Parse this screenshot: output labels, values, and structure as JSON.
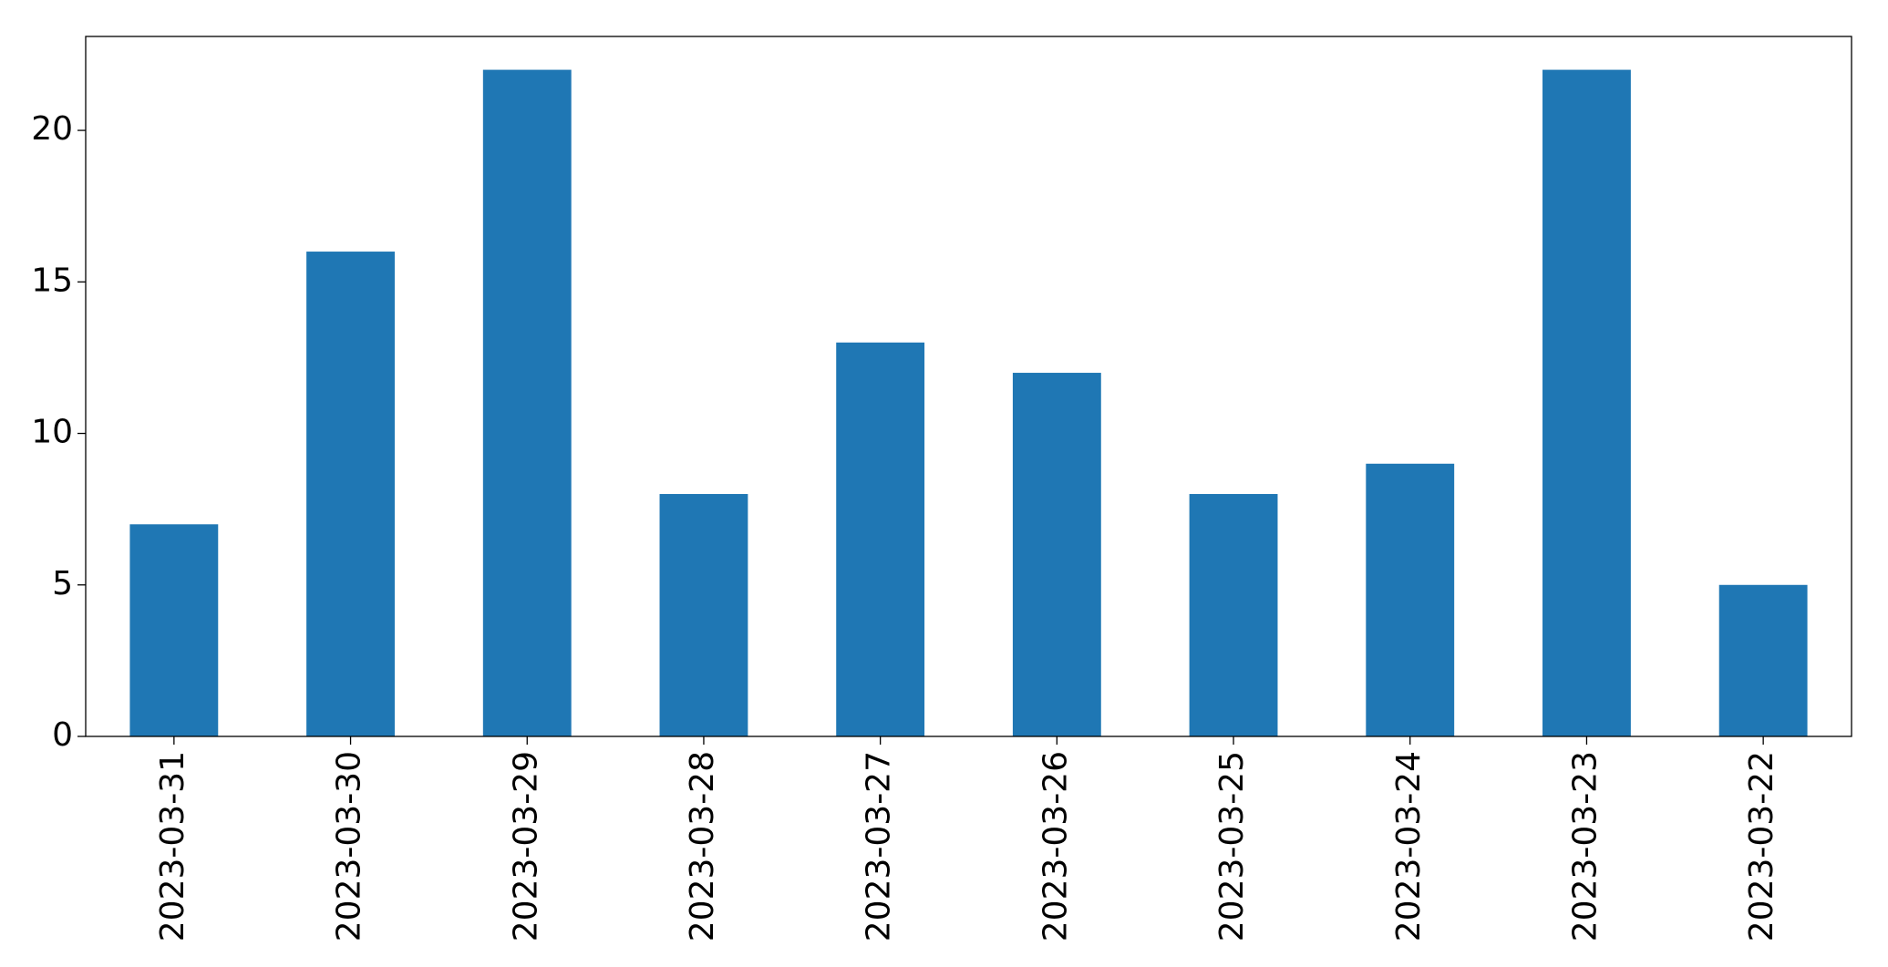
{
  "chart_data": {
    "type": "bar",
    "categories": [
      "2023-03-31",
      "2023-03-30",
      "2023-03-29",
      "2023-03-28",
      "2023-03-27",
      "2023-03-26",
      "2023-03-25",
      "2023-03-24",
      "2023-03-23",
      "2023-03-22"
    ],
    "values": [
      7,
      16,
      22,
      8,
      13,
      12,
      8,
      9,
      22,
      5
    ],
    "color": "#1f77b4",
    "ylim": [
      0,
      23.1
    ],
    "yticks": [
      0,
      5,
      10,
      15,
      20
    ],
    "grid": false
  }
}
